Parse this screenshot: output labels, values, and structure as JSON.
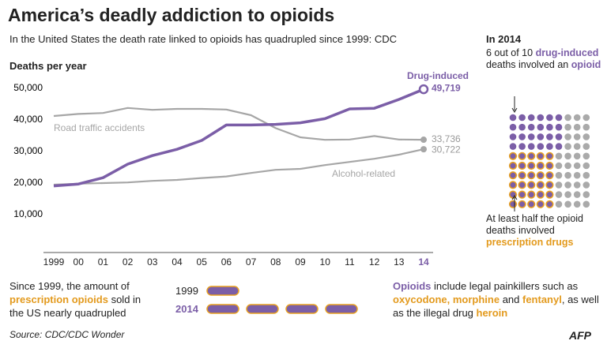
{
  "title": "America’s deadly addiction to opioids",
  "subtitle": "In the United States the death rate linked to opioids has quadrupled since 1999: CDC",
  "chart_data": {
    "type": "line",
    "y_label": "Deaths per year",
    "categories": [
      "1999",
      "00",
      "01",
      "02",
      "03",
      "04",
      "05",
      "06",
      "07",
      "08",
      "09",
      "10",
      "11",
      "12",
      "13",
      "14"
    ],
    "series": [
      {
        "name": "Drug-induced",
        "color": "#7b5ea7",
        "values": [
          19100,
          19700,
          21700,
          26000,
          28700,
          30700,
          33500,
          38400,
          38400,
          38600,
          39100,
          40400,
          43500,
          43700,
          46500,
          49719
        ],
        "value_labels": [
          null,
          null,
          null,
          null,
          null,
          null,
          null,
          null,
          null,
          null,
          null,
          null,
          null,
          null,
          null,
          "49,719"
        ]
      },
      {
        "name": "Road traffic accidents",
        "color": "#a6a6a6",
        "values": [
          41250,
          41900,
          42200,
          43800,
          43200,
          43500,
          43500,
          43300,
          41500,
          37400,
          34500,
          33700,
          33800,
          34900,
          33800,
          33736
        ],
        "value_labels": [
          null,
          null,
          null,
          null,
          null,
          null,
          null,
          null,
          null,
          null,
          null,
          null,
          null,
          null,
          null,
          "33,736"
        ]
      },
      {
        "name": "Alcohol-related",
        "color": "#a6a6a6",
        "values": [
          19500,
          19800,
          20000,
          20200,
          20700,
          21000,
          21600,
          22100,
          23200,
          24200,
          24500,
          25700,
          26700,
          27700,
          29000,
          30722
        ],
        "value_labels": [
          null,
          null,
          null,
          null,
          null,
          null,
          null,
          null,
          null,
          null,
          null,
          null,
          null,
          null,
          null,
          "30,722"
        ]
      }
    ],
    "ylim": [
      -2000,
      50000
    ],
    "yticks": [
      {
        "value": 10000,
        "label": "10,000"
      },
      {
        "value": 20000,
        "label": "20,000"
      },
      {
        "value": 30000,
        "label": "30,000"
      },
      {
        "value": 40000,
        "label": "40,000"
      },
      {
        "value": 50000,
        "label": "50,000"
      }
    ],
    "grid": false
  },
  "panel": {
    "heading": "In 2014",
    "top_text": [
      "6 out of 10 ",
      "drug-induced",
      " deaths involved an ",
      "opioid"
    ],
    "bottom_text": [
      "At least half the opioid deaths involved ",
      "prescription drugs"
    ]
  },
  "sales": {
    "text": [
      "Since 1999, the  amount of ",
      "prescription opioids",
      " sold in the US nearly quadrupled"
    ],
    "years": [
      "1999",
      "2014"
    ]
  },
  "note": {
    "text": [
      "Opioids",
      " include legal painkillers such as ",
      "oxycodone, morphine",
      " and ",
      "fentanyl",
      ", as well as the illegal drug ",
      "heroin"
    ]
  },
  "source": "Source: CDC/CDC Wonder",
  "logo": "AFP"
}
